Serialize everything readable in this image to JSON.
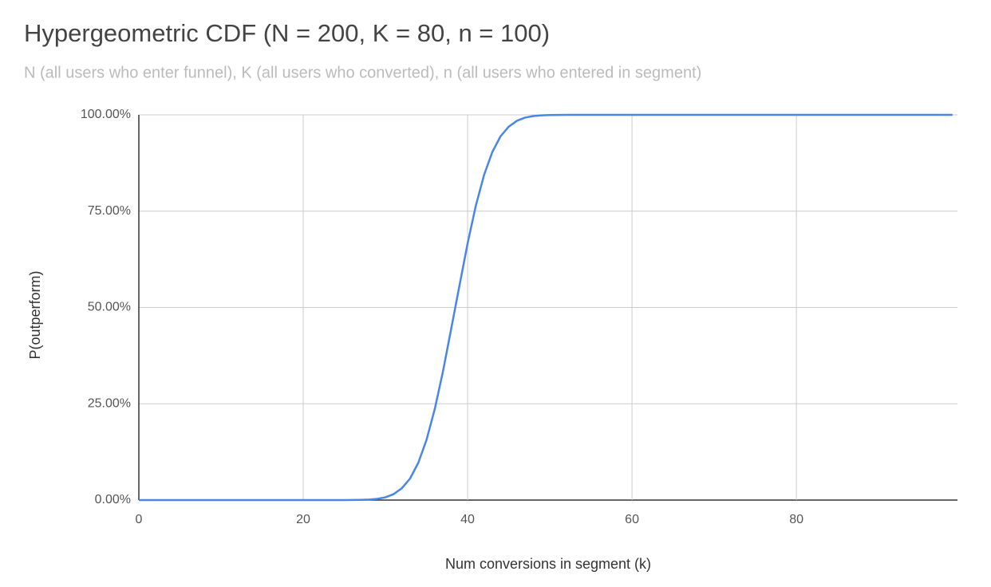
{
  "chart_data": {
    "type": "line",
    "title": "Hypergeometric CDF (N = 200, K = 80, n = 100)",
    "subtitle": "N (all users who enter funnel), K (all users who converted), n (all users who entered in segment)",
    "x_label": "Num conversions in segment (k)",
    "y_label": "P(outperform)",
    "color": "#4a86e8",
    "grid": true,
    "x": [
      0,
      1,
      2,
      3,
      4,
      5,
      6,
      7,
      8,
      9,
      10,
      11,
      12,
      13,
      14,
      15,
      16,
      17,
      18,
      19,
      20,
      21,
      22,
      23,
      24,
      25,
      26,
      27,
      28,
      29,
      30,
      31,
      32,
      33,
      34,
      35,
      36,
      37,
      38,
      39,
      40,
      41,
      42,
      43,
      44,
      45,
      46,
      47,
      48,
      49,
      50,
      51,
      52,
      53,
      54,
      55,
      56,
      57,
      58,
      59,
      60,
      61,
      62,
      63,
      64,
      65,
      66,
      67,
      68,
      69,
      70,
      71,
      72,
      73,
      74,
      75,
      76,
      77,
      78,
      79,
      80,
      81,
      82,
      83,
      84,
      85,
      86,
      87,
      88,
      89,
      90,
      91,
      92,
      93,
      94,
      95,
      96,
      97,
      98,
      99
    ],
    "values": [
      0,
      0,
      0,
      0,
      0,
      0,
      0,
      0,
      0,
      0,
      0,
      0,
      0,
      0,
      0,
      0,
      0,
      0,
      0,
      0,
      0,
      0,
      0,
      0,
      0,
      0.01,
      0.02,
      0.05,
      0.12,
      0.31,
      0.71,
      1.54,
      3.07,
      5.59,
      9.68,
      15.62,
      23.58,
      33.36,
      44.43,
      55.57,
      66.64,
      76.42,
      84.38,
      90.32,
      94.41,
      96.93,
      98.46,
      99.29,
      99.69,
      99.88,
      99.95,
      99.98,
      99.99,
      100,
      100,
      100,
      100,
      100,
      100,
      100,
      100,
      100,
      100,
      100,
      100,
      100,
      100,
      100,
      100,
      100,
      100,
      100,
      100,
      100,
      100,
      100,
      100,
      100,
      100,
      100,
      100,
      100,
      100,
      100,
      100,
      100,
      100,
      100,
      100,
      100,
      100,
      100,
      100,
      100,
      100,
      100,
      100,
      100,
      100,
      100
    ],
    "xlim": [
      0,
      99.6
    ],
    "xticks": [
      0,
      20,
      40,
      60,
      80
    ],
    "ylim": [
      0,
      100
    ],
    "yticks": [
      {
        "value": 0,
        "label": "0.00%"
      },
      {
        "value": 25,
        "label": "25.00%"
      },
      {
        "value": 50,
        "label": "50.00%"
      },
      {
        "value": 75,
        "label": "75.00%"
      },
      {
        "value": 100,
        "label": "100.00%"
      }
    ]
  }
}
